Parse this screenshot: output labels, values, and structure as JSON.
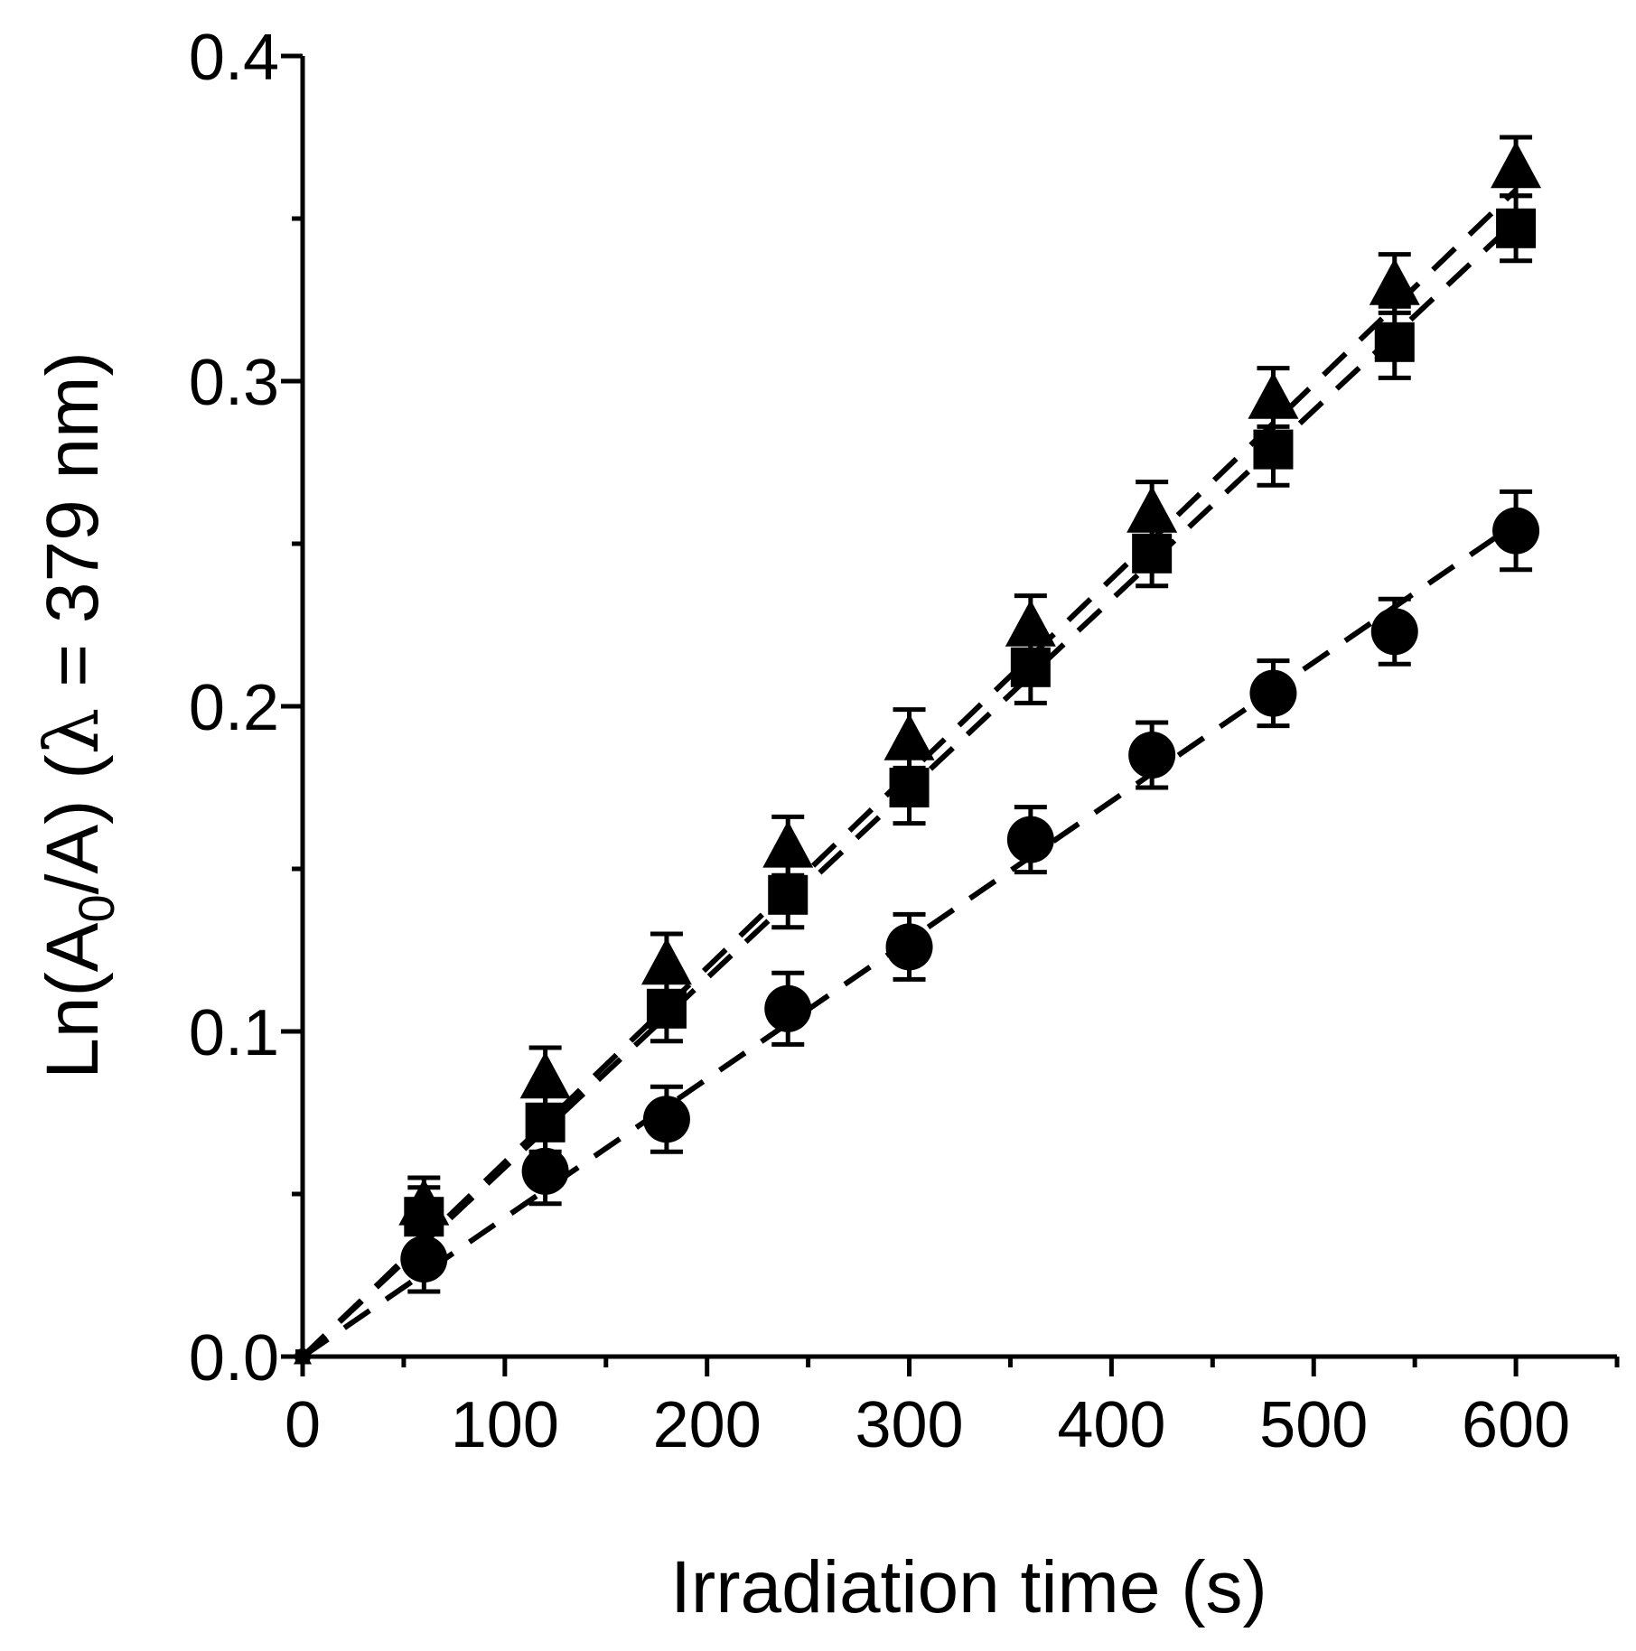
{
  "chart_data": {
    "type": "scatter",
    "title": "",
    "xlabel": "Irradiation time (s)",
    "ylabel": {
      "prefix": "Ln(A",
      "subscript": "0",
      "suffix": "/A) (",
      "lambda": "λ",
      "rest": " = 379 nm)"
    },
    "xlim": [
      0,
      650
    ],
    "ylim": [
      0.0,
      0.4
    ],
    "xticks": [
      0,
      100,
      200,
      300,
      400,
      500,
      600
    ],
    "xtick_labels": [
      "0",
      "100",
      "200",
      "300",
      "400",
      "500",
      "600"
    ],
    "xminor": [
      50,
      150,
      250,
      350,
      450,
      550,
      650
    ],
    "yticks": [
      0.0,
      0.1,
      0.2,
      0.3,
      0.4
    ],
    "ytick_labels": [
      "0.0",
      "0.1",
      "0.2",
      "0.3",
      "0.4"
    ],
    "yminor": [
      0.05,
      0.15,
      0.25,
      0.35
    ],
    "grid": false,
    "x": [
      0,
      60,
      120,
      180,
      240,
      300,
      360,
      420,
      480,
      540,
      600
    ],
    "series": [
      {
        "name": "triangle",
        "marker": "triangle",
        "values": [
          0.0,
          0.047,
          0.086,
          0.121,
          0.157,
          0.19,
          0.225,
          0.26,
          0.295,
          0.33,
          0.366
        ],
        "errors": [
          0.0,
          0.008,
          0.009,
          0.009,
          0.009,
          0.009,
          0.009,
          0.009,
          0.009,
          0.009,
          0.009
        ],
        "fit": {
          "slope": 0.000598,
          "intercept": 0.0
        }
      },
      {
        "name": "square",
        "marker": "square",
        "values": [
          0.0,
          0.043,
          0.072,
          0.107,
          0.142,
          0.175,
          0.212,
          0.247,
          0.279,
          0.312,
          0.347
        ],
        "errors": [
          0.0,
          0.009,
          0.009,
          0.01,
          0.01,
          0.011,
          0.011,
          0.01,
          0.011,
          0.011,
          0.01
        ],
        "fit": {
          "slope": 0.000582,
          "intercept": 0.0
        }
      },
      {
        "name": "circle",
        "marker": "circle",
        "values": [
          0.0,
          0.03,
          0.057,
          0.073,
          0.107,
          0.126,
          0.159,
          0.185,
          0.204,
          0.223,
          0.254
        ],
        "errors": [
          0.0,
          0.01,
          0.01,
          0.01,
          0.011,
          0.01,
          0.01,
          0.01,
          0.01,
          0.01,
          0.012
        ],
        "fit": {
          "slope": 0.000427,
          "intercept": 0.0
        }
      }
    ]
  }
}
